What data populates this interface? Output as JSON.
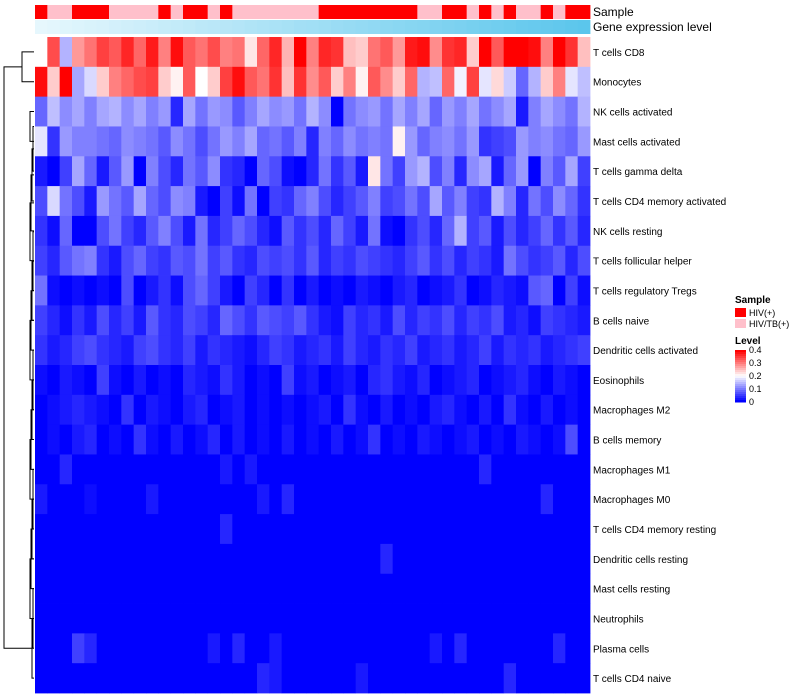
{
  "chart_data": {
    "type": "heatmap",
    "title": "",
    "annotation_tracks": [
      {
        "label": "Sample",
        "kind": "categorical"
      },
      {
        "label": "Gene expression level",
        "kind": "continuous",
        "min_color": "#e6f7fd",
        "max_color": "#5bc6ec"
      }
    ],
    "rows": [
      "T cells CD8",
      "Monocytes",
      "NK cells activated",
      "Mast cells activated",
      "T cells gamma delta",
      "T cells CD4 memory activated",
      "NK cells resting",
      "T cells follicular helper",
      "T cells regulatory  Tregs",
      "B cells naive",
      "Dendritic cells activated",
      "Eosinophils",
      "Macrophages M2",
      "B cells memory",
      "Macrophages M1",
      "Macrophages M0",
      "T cells CD4 memory resting",
      "Dendritic cells resting",
      "Mast cells resting",
      "Neutrophils",
      "Plasma cells",
      "T cells CD4 naive"
    ],
    "n_columns": 45,
    "sample_groups": [
      "HIV(+)",
      "HIV/TB(+)",
      "HIV/TB(+)",
      "HIV(+)",
      "HIV(+)",
      "HIV(+)",
      "HIV/TB(+)",
      "HIV/TB(+)",
      "HIV/TB(+)",
      "HIV/TB(+)",
      "HIV(+)",
      "HIV/TB(+)",
      "HIV(+)",
      "HIV(+)",
      "HIV/TB(+)",
      "HIV(+)",
      "HIV/TB(+)",
      "HIV/TB(+)",
      "HIV/TB(+)",
      "HIV/TB(+)",
      "HIV/TB(+)",
      "HIV/TB(+)",
      "HIV/TB(+)",
      "HIV(+)",
      "HIV(+)",
      "HIV(+)",
      "HIV(+)",
      "HIV(+)",
      "HIV(+)",
      "HIV(+)",
      "HIV(+)",
      "HIV/TB(+)",
      "HIV/TB(+)",
      "HIV(+)",
      "HIV(+)",
      "HIV/TB(+)",
      "HIV(+)",
      "HIV/TB(+)",
      "HIV(+)",
      "HIV/TB(+)",
      "HIV/TB(+)",
      "HIV(+)",
      "HIV/TB(+)",
      "HIV(+)",
      "HIV(+)"
    ],
    "sample_colors": {
      "HIV(+)": "#ff0000",
      "HIV/TB(+)": "#ffc0cb"
    },
    "gene_expression_level": [
      0.0,
      0.02,
      0.05,
      0.07,
      0.09,
      0.11,
      0.14,
      0.16,
      0.18,
      0.2,
      0.23,
      0.25,
      0.27,
      0.3,
      0.32,
      0.34,
      0.36,
      0.39,
      0.41,
      0.43,
      0.45,
      0.48,
      0.5,
      0.52,
      0.55,
      0.57,
      0.59,
      0.61,
      0.64,
      0.66,
      0.68,
      0.7,
      0.73,
      0.75,
      0.77,
      0.8,
      0.82,
      0.84,
      0.86,
      0.89,
      0.91,
      0.93,
      0.95,
      0.98,
      1.0
    ],
    "values": [
      [
        0.2,
        0.34,
        0.14,
        0.28,
        0.31,
        0.35,
        0.33,
        0.37,
        0.32,
        0.38,
        0.3,
        0.39,
        0.33,
        0.31,
        0.34,
        0.3,
        0.31,
        0.22,
        0.32,
        0.37,
        0.26,
        0.4,
        0.3,
        0.37,
        0.36,
        0.25,
        0.24,
        0.31,
        0.33,
        0.28,
        0.38,
        0.39,
        0.29,
        0.36,
        0.37,
        0.24,
        0.4,
        0.33,
        0.4,
        0.4,
        0.39,
        0.3,
        0.4,
        0.36,
        0.25
      ],
      [
        0.39,
        0.24,
        0.4,
        0.13,
        0.17,
        0.24,
        0.3,
        0.32,
        0.34,
        0.35,
        0.24,
        0.21,
        0.33,
        0.2,
        0.24,
        0.35,
        0.39,
        0.33,
        0.31,
        0.36,
        0.25,
        0.36,
        0.29,
        0.33,
        0.24,
        0.3,
        0.21,
        0.33,
        0.29,
        0.24,
        0.32,
        0.14,
        0.15,
        0.32,
        0.19,
        0.35,
        0.18,
        0.23,
        0.16,
        0.08,
        0.14,
        0.24,
        0.3,
        0.18,
        0.15
      ],
      [
        0.08,
        0.15,
        0.11,
        0.13,
        0.1,
        0.13,
        0.14,
        0.11,
        0.13,
        0.1,
        0.12,
        0.03,
        0.13,
        0.09,
        0.12,
        0.11,
        0.07,
        0.1,
        0.13,
        0.11,
        0.12,
        0.09,
        0.14,
        0.11,
        0.0,
        0.09,
        0.11,
        0.12,
        0.09,
        0.13,
        0.1,
        0.13,
        0.08,
        0.12,
        0.1,
        0.13,
        0.09,
        0.11,
        0.13,
        0.02,
        0.1,
        0.13,
        0.11,
        0.09,
        0.14
      ],
      [
        0.18,
        0.04,
        0.12,
        0.1,
        0.1,
        0.09,
        0.08,
        0.11,
        0.1,
        0.09,
        0.07,
        0.11,
        0.09,
        0.06,
        0.09,
        0.12,
        0.1,
        0.13,
        0.08,
        0.09,
        0.07,
        0.1,
        0.03,
        0.1,
        0.08,
        0.11,
        0.09,
        0.1,
        0.09,
        0.21,
        0.12,
        0.08,
        0.1,
        0.11,
        0.09,
        0.12,
        0.04,
        0.05,
        0.06,
        0.12,
        0.1,
        0.11,
        0.09,
        0.08,
        0.12
      ],
      [
        0.02,
        0.0,
        0.05,
        0.13,
        0.08,
        0.02,
        0.07,
        0.12,
        0.0,
        0.1,
        0.06,
        0.03,
        0.09,
        0.07,
        0.11,
        0.04,
        0.03,
        0.0,
        0.08,
        0.06,
        0.01,
        0.0,
        0.03,
        0.09,
        0.04,
        0.07,
        0.02,
        0.22,
        0.09,
        0.05,
        0.12,
        0.14,
        0.06,
        0.1,
        0.03,
        0.11,
        0.13,
        0.02,
        0.08,
        0.12,
        0.0,
        0.1,
        0.07,
        0.13,
        0.05
      ],
      [
        0.06,
        0.17,
        0.09,
        0.06,
        0.02,
        0.12,
        0.09,
        0.07,
        0.13,
        0.08,
        0.06,
        0.11,
        0.1,
        0.02,
        0.0,
        0.05,
        0.01,
        0.09,
        0.0,
        0.05,
        0.04,
        0.08,
        0.1,
        0.06,
        0.03,
        0.05,
        0.07,
        0.1,
        0.05,
        0.06,
        0.09,
        0.06,
        0.13,
        0.07,
        0.1,
        0.05,
        0.04,
        0.14,
        0.1,
        0.03,
        0.09,
        0.06,
        0.11,
        0.08,
        0.04
      ],
      [
        0.04,
        0.01,
        0.08,
        0.0,
        0.0,
        0.06,
        0.09,
        0.05,
        0.03,
        0.07,
        0.1,
        0.06,
        0.02,
        0.09,
        0.03,
        0.05,
        0.08,
        0.06,
        0.03,
        0.01,
        0.07,
        0.04,
        0.06,
        0.03,
        0.08,
        0.05,
        0.02,
        0.09,
        0.01,
        0.0,
        0.04,
        0.06,
        0.03,
        0.08,
        0.14,
        0.05,
        0.07,
        0.02,
        0.06,
        0.03,
        0.05,
        0.08,
        0.04,
        0.07,
        0.03
      ],
      [
        0.05,
        0.03,
        0.07,
        0.09,
        0.1,
        0.04,
        0.02,
        0.06,
        0.08,
        0.05,
        0.04,
        0.07,
        0.06,
        0.09,
        0.05,
        0.07,
        0.04,
        0.03,
        0.06,
        0.05,
        0.06,
        0.04,
        0.07,
        0.03,
        0.05,
        0.04,
        0.06,
        0.05,
        0.04,
        0.03,
        0.05,
        0.07,
        0.04,
        0.06,
        0.03,
        0.05,
        0.04,
        0.02,
        0.09,
        0.06,
        0.04,
        0.05,
        0.07,
        0.03,
        0.06
      ],
      [
        0.09,
        0.01,
        0.0,
        0.01,
        0.0,
        0.01,
        0.0,
        0.06,
        0.0,
        0.02,
        0.04,
        0.01,
        0.06,
        0.08,
        0.05,
        0.02,
        0.0,
        0.05,
        0.03,
        0.0,
        0.04,
        0.0,
        0.02,
        0.0,
        0.01,
        0.0,
        0.02,
        0.01,
        0.0,
        0.02,
        0.03,
        0.0,
        0.01,
        0.02,
        0.04,
        0.0,
        0.01,
        0.03,
        0.02,
        0.01,
        0.07,
        0.08,
        0.0,
        0.05,
        0.01
      ],
      [
        0.05,
        0.03,
        0.01,
        0.04,
        0.02,
        0.06,
        0.03,
        0.05,
        0.02,
        0.07,
        0.04,
        0.03,
        0.06,
        0.05,
        0.03,
        0.08,
        0.06,
        0.04,
        0.07,
        0.06,
        0.05,
        0.07,
        0.04,
        0.02,
        0.01,
        0.05,
        0.03,
        0.04,
        0.02,
        0.06,
        0.03,
        0.05,
        0.04,
        0.06,
        0.03,
        0.05,
        0.04,
        0.06,
        0.02,
        0.03,
        0.01,
        0.05,
        0.04,
        0.03,
        0.02
      ],
      [
        0.04,
        0.02,
        0.03,
        0.05,
        0.06,
        0.04,
        0.03,
        0.02,
        0.05,
        0.06,
        0.04,
        0.03,
        0.05,
        0.02,
        0.04,
        0.03,
        0.02,
        0.01,
        0.03,
        0.05,
        0.04,
        0.02,
        0.03,
        0.04,
        0.02,
        0.05,
        0.03,
        0.02,
        0.04,
        0.03,
        0.05,
        0.02,
        0.03,
        0.04,
        0.02,
        0.03,
        0.05,
        0.02,
        0.04,
        0.03,
        0.04,
        0.02,
        0.03,
        0.04,
        0.05
      ],
      [
        0.01,
        0.0,
        0.02,
        0.01,
        0.0,
        0.05,
        0.01,
        0.0,
        0.02,
        0.0,
        0.01,
        0.0,
        0.03,
        0.02,
        0.01,
        0.04,
        0.02,
        0.0,
        0.01,
        0.0,
        0.05,
        0.01,
        0.02,
        0.0,
        0.01,
        0.02,
        0.0,
        0.03,
        0.04,
        0.02,
        0.01,
        0.03,
        0.0,
        0.01,
        0.02,
        0.03,
        0.0,
        0.01,
        0.02,
        0.03,
        0.01,
        0.0,
        0.02,
        0.01,
        0.0
      ],
      [
        0.0,
        0.01,
        0.02,
        0.03,
        0.02,
        0.01,
        0.0,
        0.04,
        0.0,
        0.02,
        0.01,
        0.0,
        0.02,
        0.03,
        0.0,
        0.01,
        0.02,
        0.0,
        0.01,
        0.0,
        0.01,
        0.0,
        0.01,
        0.02,
        0.0,
        0.04,
        0.01,
        0.0,
        0.02,
        0.0,
        0.01,
        0.0,
        0.02,
        0.03,
        0.01,
        0.0,
        0.02,
        0.0,
        0.04,
        0.01,
        0.0,
        0.02,
        0.0,
        0.01,
        0.0
      ],
      [
        0.0,
        0.01,
        0.0,
        0.02,
        0.03,
        0.0,
        0.01,
        0.0,
        0.04,
        0.01,
        0.0,
        0.02,
        0.0,
        0.01,
        0.03,
        0.0,
        0.02,
        0.0,
        0.01,
        0.0,
        0.02,
        0.0,
        0.01,
        0.0,
        0.02,
        0.0,
        0.01,
        0.04,
        0.0,
        0.01,
        0.0,
        0.02,
        0.01,
        0.0,
        0.01,
        0.02,
        0.0,
        0.01,
        0.0,
        0.02,
        0.01,
        0.0,
        0.01,
        0.06,
        0.0
      ],
      [
        0.0,
        0.0,
        0.03,
        0.0,
        0.0,
        0.0,
        0.0,
        0.0,
        0.0,
        0.0,
        0.0,
        0.0,
        0.0,
        0.0,
        0.0,
        0.02,
        0.0,
        0.02,
        0.0,
        0.0,
        0.0,
        0.0,
        0.0,
        0.0,
        0.0,
        0.0,
        0.0,
        0.0,
        0.0,
        0.0,
        0.0,
        0.0,
        0.0,
        0.0,
        0.0,
        0.0,
        0.03,
        0.0,
        0.0,
        0.0,
        0.0,
        0.0,
        0.0,
        0.0,
        0.0
      ],
      [
        0.02,
        0.0,
        0.0,
        0.0,
        0.01,
        0.0,
        0.0,
        0.0,
        0.0,
        0.02,
        0.0,
        0.0,
        0.0,
        0.0,
        0.0,
        0.0,
        0.0,
        0.0,
        0.02,
        0.0,
        0.03,
        0.0,
        0.0,
        0.0,
        0.0,
        0.0,
        0.0,
        0.0,
        0.0,
        0.0,
        0.0,
        0.0,
        0.0,
        0.0,
        0.0,
        0.0,
        0.0,
        0.0,
        0.0,
        0.0,
        0.0,
        0.03,
        0.0,
        0.0,
        0.0
      ],
      [
        0.0,
        0.0,
        0.0,
        0.0,
        0.0,
        0.0,
        0.0,
        0.0,
        0.0,
        0.0,
        0.0,
        0.0,
        0.0,
        0.0,
        0.0,
        0.03,
        0.0,
        0.0,
        0.0,
        0.0,
        0.0,
        0.0,
        0.0,
        0.0,
        0.0,
        0.0,
        0.0,
        0.0,
        0.0,
        0.0,
        0.0,
        0.0,
        0.0,
        0.0,
        0.0,
        0.0,
        0.0,
        0.0,
        0.0,
        0.0,
        0.0,
        0.0,
        0.0,
        0.0,
        0.0
      ],
      [
        0.0,
        0.0,
        0.0,
        0.0,
        0.0,
        0.0,
        0.0,
        0.0,
        0.0,
        0.0,
        0.0,
        0.0,
        0.0,
        0.0,
        0.0,
        0.0,
        0.0,
        0.0,
        0.0,
        0.0,
        0.0,
        0.0,
        0.0,
        0.0,
        0.0,
        0.0,
        0.0,
        0.0,
        0.03,
        0.0,
        0.0,
        0.0,
        0.0,
        0.0,
        0.0,
        0.0,
        0.0,
        0.0,
        0.0,
        0.0,
        0.0,
        0.0,
        0.0,
        0.0,
        0.0
      ],
      [
        0.0,
        0.0,
        0.0,
        0.0,
        0.0,
        0.0,
        0.0,
        0.0,
        0.0,
        0.0,
        0.0,
        0.0,
        0.0,
        0.0,
        0.0,
        0.0,
        0.0,
        0.0,
        0.0,
        0.0,
        0.0,
        0.0,
        0.0,
        0.0,
        0.0,
        0.0,
        0.0,
        0.0,
        0.0,
        0.0,
        0.0,
        0.0,
        0.0,
        0.0,
        0.0,
        0.0,
        0.0,
        0.0,
        0.0,
        0.0,
        0.0,
        0.0,
        0.0,
        0.0,
        0.0
      ],
      [
        0.0,
        0.0,
        0.0,
        0.0,
        0.0,
        0.0,
        0.0,
        0.0,
        0.0,
        0.0,
        0.0,
        0.0,
        0.0,
        0.0,
        0.0,
        0.0,
        0.0,
        0.0,
        0.0,
        0.0,
        0.0,
        0.0,
        0.0,
        0.0,
        0.0,
        0.0,
        0.0,
        0.0,
        0.0,
        0.0,
        0.0,
        0.0,
        0.0,
        0.0,
        0.0,
        0.0,
        0.0,
        0.0,
        0.0,
        0.0,
        0.0,
        0.0,
        0.0,
        0.0,
        0.0
      ],
      [
        0.0,
        0.0,
        0.0,
        0.05,
        0.03,
        0.0,
        0.0,
        0.0,
        0.0,
        0.0,
        0.0,
        0.0,
        0.0,
        0.0,
        0.02,
        0.0,
        0.03,
        0.0,
        0.0,
        0.02,
        0.0,
        0.0,
        0.0,
        0.0,
        0.0,
        0.0,
        0.0,
        0.0,
        0.0,
        0.0,
        0.0,
        0.0,
        0.02,
        0.0,
        0.03,
        0.0,
        0.0,
        0.0,
        0.0,
        0.0,
        0.0,
        0.0,
        0.03,
        0.0,
        0.0
      ],
      [
        0.0,
        0.0,
        0.0,
        0.0,
        0.0,
        0.0,
        0.0,
        0.0,
        0.0,
        0.0,
        0.0,
        0.0,
        0.0,
        0.0,
        0.0,
        0.0,
        0.0,
        0.0,
        0.03,
        0.02,
        0.0,
        0.0,
        0.0,
        0.0,
        0.0,
        0.0,
        0.02,
        0.0,
        0.0,
        0.0,
        0.0,
        0.0,
        0.0,
        0.0,
        0.0,
        0.0,
        0.0,
        0.0,
        0.03,
        0.0,
        0.0,
        0.0,
        0.0,
        0.0,
        0.0
      ]
    ],
    "color_scale": {
      "min": 0,
      "max": 0.4,
      "low": "#0000ff",
      "mid": "#ffffff",
      "high": "#ff0000",
      "midpoint": 0.2
    },
    "legend": {
      "sample_title": "Sample",
      "sample_entries": [
        "HIV(+)",
        "HIV/TB(+)"
      ],
      "level_title": "Level",
      "level_ticks": [
        "0.4",
        "0.3",
        "0.2",
        "0.1",
        "0"
      ]
    },
    "row_dendrogram": true
  }
}
